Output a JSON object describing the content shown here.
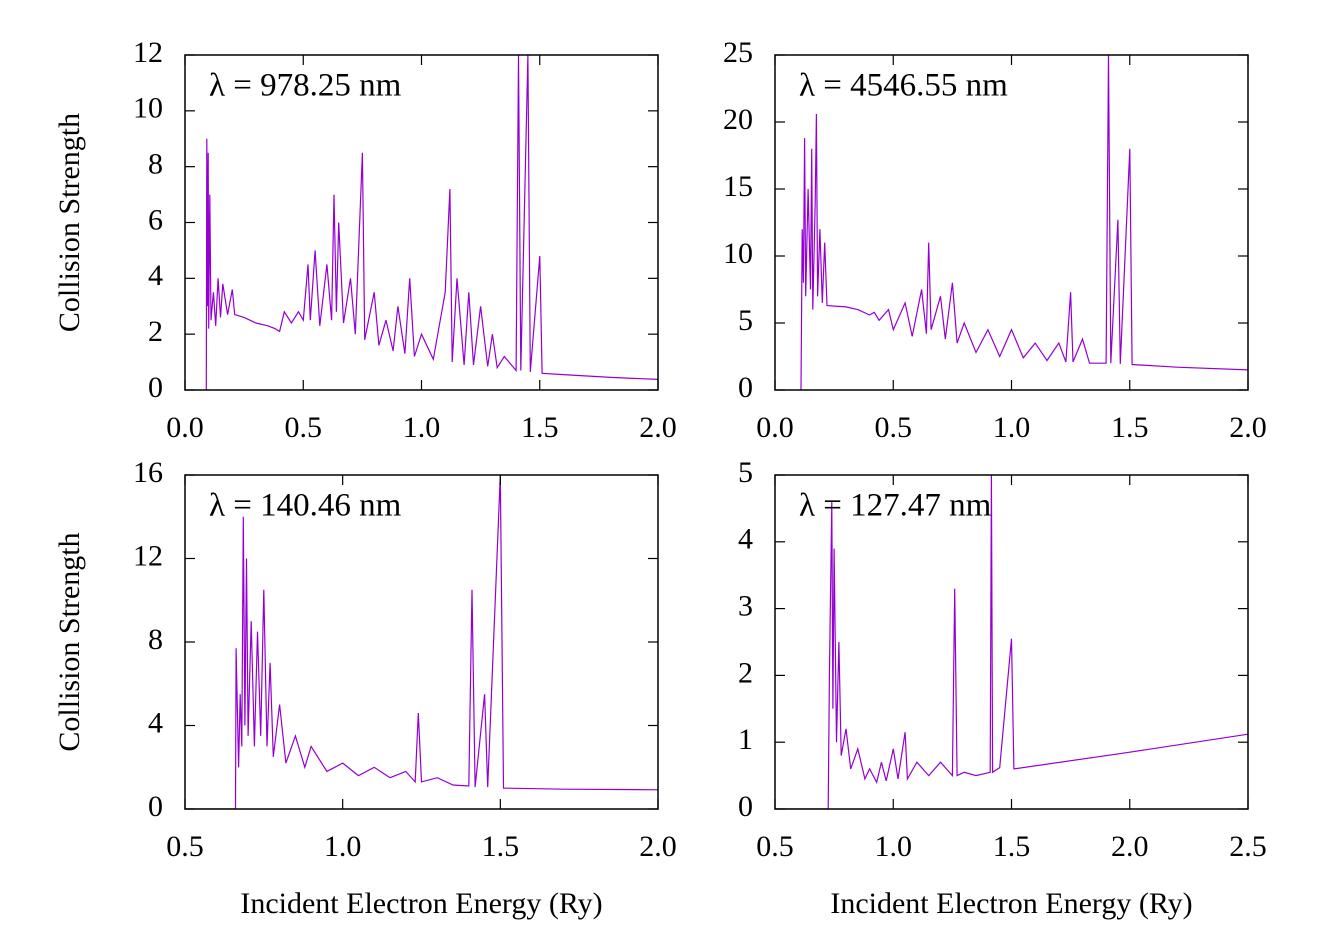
{
  "chart_data": [
    {
      "type": "line",
      "annotation": "λ = 978.25 nm",
      "ylabel": "Collision Strength",
      "color": "#9400d3",
      "xlim": [
        0,
        2
      ],
      "ylim": [
        0,
        12
      ],
      "xticks": [
        {
          "value": 0,
          "label": "0.0"
        },
        0.5,
        {
          "value": 1,
          "label": "1.0"
        },
        1.5,
        {
          "value": 2,
          "label": "2.0"
        }
      ],
      "yticks": [
        0,
        2,
        4,
        6,
        8,
        10,
        12
      ],
      "x": [
        0.09,
        0.092,
        0.095,
        0.098,
        0.1,
        0.105,
        0.11,
        0.12,
        0.13,
        0.14,
        0.15,
        0.16,
        0.18,
        0.2,
        0.21,
        0.25,
        0.3,
        0.35,
        0.38,
        0.4,
        0.42,
        0.45,
        0.48,
        0.5,
        0.52,
        0.53,
        0.55,
        0.57,
        0.6,
        0.62,
        0.63,
        0.64,
        0.65,
        0.67,
        0.7,
        0.72,
        0.75,
        0.76,
        0.8,
        0.82,
        0.85,
        0.88,
        0.9,
        0.93,
        0.95,
        0.97,
        1.0,
        1.05,
        1.1,
        1.12,
        1.13,
        1.15,
        1.18,
        1.2,
        1.22,
        1.25,
        1.28,
        1.3,
        1.32,
        1.35,
        1.4,
        1.41,
        1.42,
        1.45,
        1.46,
        1.5,
        1.51,
        1.6,
        1.8,
        2.0
      ],
      "values": [
        0,
        9.0,
        3,
        8.5,
        2.2,
        7,
        2.5,
        3.5,
        2.3,
        4,
        2.6,
        3.8,
        2.7,
        3.6,
        2.7,
        2.6,
        2.4,
        2.3,
        2.2,
        2.1,
        2.8,
        2.4,
        2.8,
        2.5,
        4.5,
        2.5,
        5,
        2.3,
        4.5,
        2.5,
        7,
        2.8,
        6,
        2.4,
        4,
        2,
        8.5,
        1.8,
        3.5,
        1.6,
        2.5,
        1.4,
        3,
        1.3,
        4,
        1.2,
        2,
        1.1,
        3.5,
        7.2,
        1.0,
        4,
        0.9,
        3.5,
        0.9,
        3,
        0.85,
        2,
        0.8,
        1.2,
        0.7,
        12,
        0.7,
        12,
        0.65,
        4.8,
        0.6,
        0.55,
        0.45,
        0.38
      ]
    },
    {
      "type": "line",
      "annotation": "λ = 4546.55 nm",
      "color": "#9400d3",
      "xlim": [
        0,
        2
      ],
      "ylim": [
        0,
        25
      ],
      "xticks": [
        {
          "value": 0,
          "label": "0.0"
        },
        0.5,
        {
          "value": 1,
          "label": "1.0"
        },
        1.5,
        {
          "value": 2,
          "label": "2.0"
        }
      ],
      "yticks": [
        0,
        5,
        10,
        15,
        20,
        25
      ],
      "x": [
        0.11,
        0.115,
        0.12,
        0.125,
        0.13,
        0.14,
        0.15,
        0.155,
        0.16,
        0.17,
        0.175,
        0.18,
        0.19,
        0.2,
        0.21,
        0.22,
        0.3,
        0.35,
        0.4,
        0.42,
        0.44,
        0.48,
        0.5,
        0.55,
        0.58,
        0.62,
        0.64,
        0.65,
        0.66,
        0.7,
        0.72,
        0.75,
        0.77,
        0.8,
        0.85,
        0.9,
        0.95,
        1.0,
        1.05,
        1.1,
        1.15,
        1.2,
        1.23,
        1.25,
        1.26,
        1.3,
        1.33,
        1.4,
        1.41,
        1.42,
        1.45,
        1.46,
        1.5,
        1.51,
        1.7,
        2.0
      ],
      "values": [
        0,
        12,
        8,
        18.8,
        7,
        15,
        7.5,
        18,
        6,
        14,
        20.6,
        7,
        12,
        6.5,
        11,
        6.3,
        6.2,
        6,
        5.6,
        5.8,
        5.2,
        6,
        4.5,
        6.5,
        4,
        7.5,
        4.2,
        11,
        4.5,
        7,
        3.8,
        8,
        3.5,
        5,
        2.8,
        4.5,
        2.5,
        4.5,
        2.4,
        3.5,
        2.2,
        3.5,
        2.1,
        7.3,
        2.1,
        3.8,
        2,
        2,
        25,
        2,
        12.7,
        1.95,
        18,
        1.9,
        1.7,
        1.5
      ]
    },
    {
      "type": "line",
      "annotation": "λ = 140.46 nm",
      "ylabel": "Collision Strength",
      "xlabel": "Incident Electron Energy (Ry)",
      "color": "#9400d3",
      "xlim": [
        0.5,
        2
      ],
      "ylim": [
        0,
        16
      ],
      "xticks": [
        0.5,
        {
          "value": 1,
          "label": "1.0"
        },
        1.5,
        {
          "value": 2,
          "label": "2.0"
        }
      ],
      "yticks": [
        0,
        4,
        8,
        12,
        16
      ],
      "x": [
        0.5,
        0.66,
        0.662,
        0.67,
        0.675,
        0.68,
        0.685,
        0.69,
        0.695,
        0.7,
        0.71,
        0.72,
        0.73,
        0.74,
        0.75,
        0.76,
        0.77,
        0.78,
        0.8,
        0.82,
        0.85,
        0.88,
        0.9,
        0.95,
        1.0,
        1.05,
        1.1,
        1.15,
        1.2,
        1.23,
        1.24,
        1.25,
        1.3,
        1.35,
        1.4,
        1.41,
        1.42,
        1.45,
        1.46,
        1.5,
        1.51,
        1.7,
        2.0
      ],
      "values": [
        0,
        0,
        7.7,
        2,
        5.5,
        3,
        14,
        4,
        12,
        3.5,
        9,
        3,
        8.5,
        3.5,
        10.5,
        3,
        7,
        2.5,
        5,
        2.2,
        3.5,
        2,
        3,
        1.8,
        2.2,
        1.6,
        2,
        1.5,
        1.8,
        1.3,
        4.6,
        1.3,
        1.5,
        1.15,
        1.1,
        10.5,
        1.05,
        5.5,
        1.05,
        16,
        1.0,
        0.95,
        0.92
      ]
    },
    {
      "type": "line",
      "annotation": "λ = 127.47 nm",
      "xlabel": "Incident Electron Energy (Ry)",
      "color": "#9400d3",
      "xlim": [
        0.5,
        2.5
      ],
      "ylim": [
        0,
        5
      ],
      "xticks": [
        0.5,
        {
          "value": 1,
          "label": "1.0"
        },
        1.5,
        {
          "value": 2,
          "label": "2.0"
        },
        2.5
      ],
      "yticks": [
        0,
        1,
        2,
        3,
        4,
        5
      ],
      "x": [
        0.5,
        0.725,
        0.73,
        0.74,
        0.745,
        0.75,
        0.76,
        0.77,
        0.78,
        0.8,
        0.82,
        0.85,
        0.88,
        0.9,
        0.93,
        0.95,
        0.97,
        1.0,
        1.02,
        1.05,
        1.06,
        1.1,
        1.15,
        1.2,
        1.25,
        1.26,
        1.27,
        1.3,
        1.35,
        1.41,
        1.415,
        1.42,
        1.45,
        1.5,
        1.51,
        2.0,
        2.5
      ],
      "values": [
        0,
        0,
        2,
        4.6,
        1.5,
        3.9,
        1,
        2.5,
        0.8,
        1.2,
        0.6,
        0.9,
        0.45,
        0.6,
        0.4,
        0.7,
        0.42,
        0.9,
        0.45,
        1.15,
        0.45,
        0.7,
        0.5,
        0.7,
        0.5,
        3.3,
        0.5,
        0.55,
        0.5,
        0.55,
        5,
        0.55,
        0.62,
        2.55,
        0.6,
        0.85,
        1.12
      ]
    }
  ]
}
